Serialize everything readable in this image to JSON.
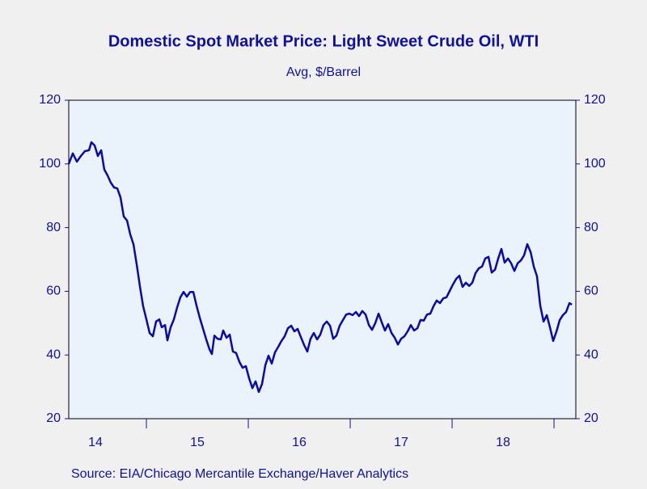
{
  "chart_data": {
    "type": "line",
    "title": "Domestic Spot Market Price: Light Sweet Crude Oil, WTI",
    "subtitle": "Avg, $/Barrel",
    "source": "Source:  EIA/Chicago Mercantile Exchange/Haver Analytics",
    "color": "#0a0aa8",
    "xlim": [
      14.238,
      19.214
    ],
    "xticks": [
      15,
      16,
      17,
      18,
      19
    ],
    "xtick_labels": [
      {
        "value": 14.5,
        "label": "14"
      },
      {
        "value": 15.5,
        "label": "15"
      },
      {
        "value": 16.5,
        "label": "16"
      },
      {
        "value": 17.5,
        "label": "17"
      },
      {
        "value": 18.5,
        "label": "18"
      }
    ],
    "ylim": [
      20,
      120
    ],
    "yticks": [
      20,
      40,
      60,
      80,
      100,
      120
    ],
    "y2lim": [
      20,
      120
    ],
    "y2ticks": [
      20,
      40,
      60,
      80,
      100,
      120
    ],
    "x": [
      14.238,
      14.278,
      14.317,
      14.357,
      14.397,
      14.437,
      14.46,
      14.492,
      14.524,
      14.556,
      14.587,
      14.619,
      14.651,
      14.683,
      14.714,
      14.746,
      14.778,
      14.81,
      14.841,
      14.873,
      14.905,
      14.937,
      14.968,
      15.0,
      15.032,
      15.063,
      15.095,
      15.127,
      15.151,
      15.183,
      15.206,
      15.238,
      15.27,
      15.302,
      15.333,
      15.365,
      15.397,
      15.429,
      15.46,
      15.492,
      15.524,
      15.556,
      15.587,
      15.619,
      15.643,
      15.667,
      15.698,
      15.73,
      15.754,
      15.786,
      15.817,
      15.849,
      15.881,
      15.913,
      15.944,
      15.976,
      16.008,
      16.04,
      16.071,
      16.103,
      16.135,
      16.167,
      16.198,
      16.23,
      16.262,
      16.294,
      16.325,
      16.357,
      16.389,
      16.421,
      16.452,
      16.484,
      16.516,
      16.548,
      16.579,
      16.611,
      16.643,
      16.675,
      16.706,
      16.738,
      16.77,
      16.802,
      16.833,
      16.865,
      16.897,
      16.929,
      16.96,
      16.992,
      17.024,
      17.056,
      17.087,
      17.119,
      17.151,
      17.183,
      17.214,
      17.246,
      17.278,
      17.31,
      17.341,
      17.373,
      17.405,
      17.437,
      17.468,
      17.5,
      17.532,
      17.563,
      17.595,
      17.627,
      17.659,
      17.69,
      17.722,
      17.754,
      17.786,
      17.817,
      17.849,
      17.881,
      17.913,
      17.944,
      17.976,
      18.008,
      18.04,
      18.071,
      18.103,
      18.135,
      18.167,
      18.198,
      18.23,
      18.262,
      18.294,
      18.325,
      18.357,
      18.389,
      18.421,
      18.452,
      18.484,
      18.516,
      18.548,
      18.579,
      18.611,
      18.643,
      18.675,
      18.706,
      18.738,
      18.77,
      18.802,
      18.833,
      18.865,
      18.897,
      18.929,
      18.96,
      18.992,
      19.024,
      19.056,
      19.087,
      19.119,
      19.151,
      19.175
    ],
    "values": [
      100,
      103.3,
      100.7,
      102.5,
      104,
      104.3,
      106.8,
      105.8,
      102.5,
      104.3,
      98.2,
      96.4,
      94.1,
      92.6,
      92.3,
      89.5,
      83.5,
      82.2,
      77.9,
      74.8,
      68.5,
      61.4,
      55.3,
      51.2,
      46.9,
      45.9,
      50.5,
      51.2,
      48.7,
      49.4,
      44.6,
      48.7,
      51.2,
      55.0,
      58.1,
      59.8,
      58.3,
      59.8,
      59.8,
      55.5,
      51.7,
      48.2,
      44.9,
      41.8,
      40.3,
      46.1,
      45.1,
      44.9,
      47.7,
      45.4,
      46.4,
      41.1,
      40.6,
      37.8,
      36.0,
      36.5,
      32.7,
      29.6,
      31.7,
      28.4,
      30.9,
      36.8,
      39.8,
      37.3,
      40.8,
      42.6,
      44.4,
      45.9,
      48.4,
      49.2,
      47.4,
      48.2,
      45.6,
      43.1,
      41.1,
      45.1,
      46.9,
      44.9,
      46.4,
      49.4,
      50.5,
      49.2,
      45.1,
      46.1,
      49.2,
      51.0,
      52.7,
      53.0,
      52.5,
      53.5,
      52.2,
      53.8,
      52.7,
      49.4,
      47.9,
      50.0,
      53.0,
      50.2,
      47.7,
      49.7,
      46.9,
      45.4,
      43.3,
      45.1,
      45.9,
      47.4,
      49.4,
      47.7,
      48.4,
      51.0,
      50.8,
      52.7,
      53.0,
      55.3,
      57.1,
      56.3,
      57.8,
      58.1,
      60.1,
      62.1,
      63.9,
      64.9,
      61.4,
      62.7,
      61.7,
      62.7,
      65.7,
      67.2,
      67.8,
      70.3,
      70.8,
      65.9,
      66.8,
      70.3,
      73.3,
      69.0,
      70.3,
      68.8,
      66.4,
      68.8,
      69.7,
      71.3,
      74.8,
      72.3,
      67.7,
      64.7,
      55.5,
      50.5,
      52.5,
      48.7,
      44.4,
      47.4,
      51.0,
      52.5,
      53.5,
      56.3,
      55.8
    ]
  }
}
